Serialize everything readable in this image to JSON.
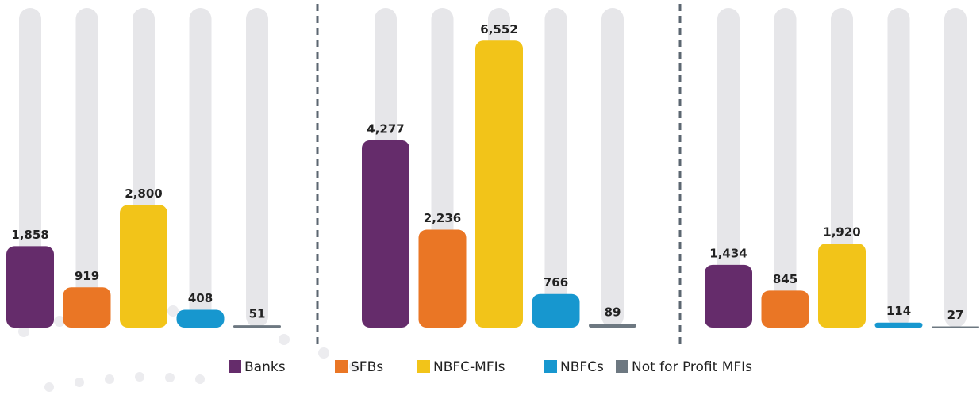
{
  "chart_data": {
    "type": "bar",
    "categories": [
      null,
      null,
      null
    ],
    "ylim": [
      0,
      7300
    ],
    "series": [
      {
        "name": "Banks",
        "color": "#652c6b",
        "values": [
          1858,
          4277,
          1434
        ],
        "value_labels": [
          "1,858",
          "4,277",
          "1,434"
        ]
      },
      {
        "name": "SFBs",
        "color": "#ea7625",
        "values": [
          919,
          2236,
          845
        ],
        "value_labels": [
          "919",
          "2,236",
          "845"
        ]
      },
      {
        "name": "NBFC-MFIs",
        "color": "#f2c419",
        "values": [
          2800,
          6552,
          1920
        ],
        "value_labels": [
          "2,800",
          "6,552",
          "1,920"
        ]
      },
      {
        "name": "NBFCs",
        "color": "#1797cf",
        "values": [
          408,
          766,
          114
        ],
        "value_labels": [
          "408",
          "766",
          "114"
        ]
      },
      {
        "name": "Not for Profit MFIs",
        "color": "#6d7881",
        "values": [
          51,
          89,
          27
        ],
        "value_labels": [
          "51",
          "89",
          "27"
        ]
      }
    ]
  }
}
